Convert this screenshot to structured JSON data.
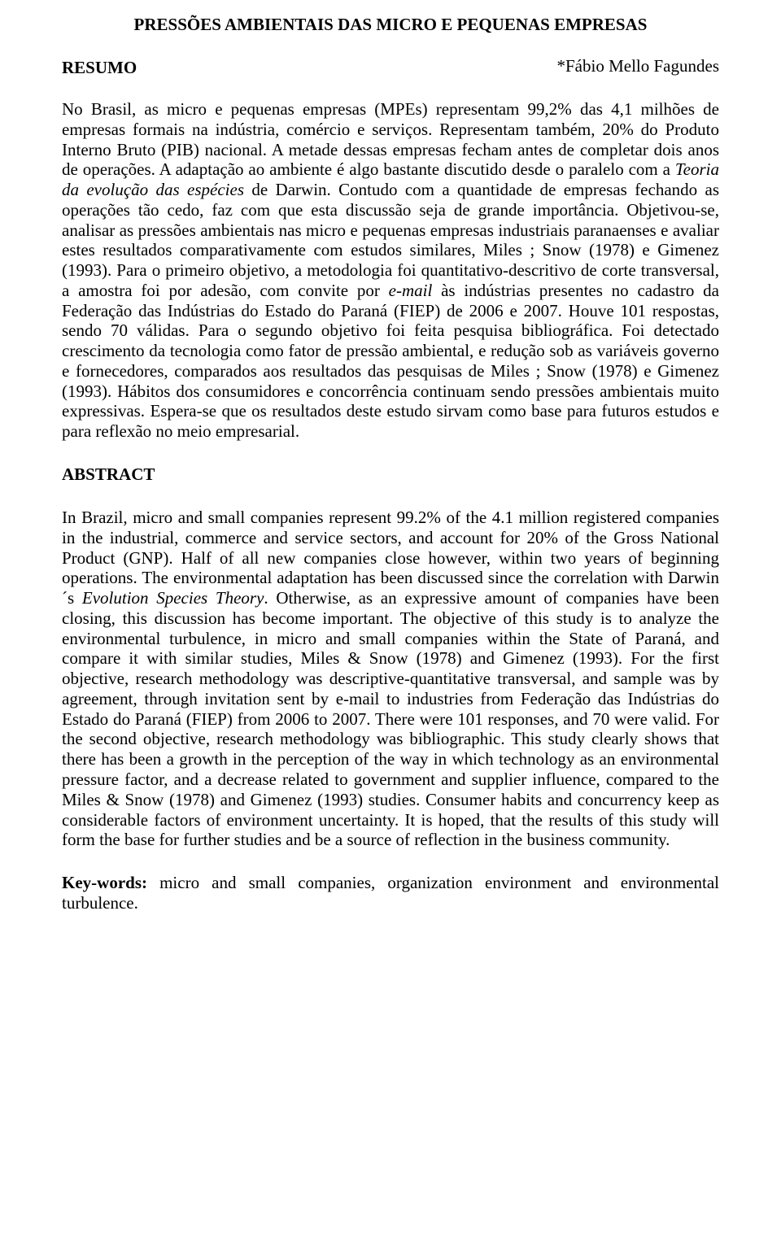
{
  "title": "PRESSÕES AMBIENTAIS DAS MICRO E PEQUENAS EMPRESAS",
  "resumo_heading": "RESUMO",
  "author": "*Fábio Mello Fagundes",
  "resumo_body_1": "No Brasil, as micro e pequenas empresas (MPEs) representam 99,2% das 4,1 milhões de empresas formais na indústria, comércio e serviços. Representam também, 20% do Produto Interno Bruto (PIB) nacional. A metade dessas empresas fecham antes de completar dois anos de operações. A adaptação ao ambiente é algo bastante discutido desde o paralelo com a ",
  "resumo_italic_1": "Teoria da evolução das espécies",
  "resumo_body_2": " de Darwin. Contudo com a quantidade de empresas fechando as operações tão cedo, faz com que esta discussão seja de grande importância. Objetivou-se, analisar as pressões ambientais nas micro e pequenas empresas industriais paranaenses e avaliar estes resultados comparativamente com estudos similares, Miles ; Snow (1978) e Gimenez (1993). Para o primeiro objetivo, a metodologia foi quantitativo-descritivo de corte transversal, a amostra foi por adesão, com convite por ",
  "resumo_italic_2": "e-mail",
  "resumo_body_3": " às indústrias presentes no cadastro da Federação das Indústrias do Estado do Paraná (FIEP) de 2006 e 2007. Houve 101 respostas, sendo 70 válidas. Para o segundo objetivo foi feita pesquisa bibliográfica. Foi detectado crescimento da tecnologia como fator de pressão ambiental, e redução sob as variáveis governo e fornecedores, comparados aos resultados das pesquisas de Miles ; Snow (1978) e Gimenez (1993). Hábitos dos consumidores e concorrência continuam sendo pressões ambientais muito expressivas. Espera-se que os resultados deste estudo sirvam como base para futuros estudos e para reflexão no meio empresarial.",
  "abstract_heading": "ABSTRACT",
  "abstract_body_1": "In Brazil, micro and small companies represent 99.2% of the 4.1 million registered companies in the industrial, commerce and service sectors, and account for 20% of the Gross National Product (GNP). Half of all new companies close however, within two years of beginning operations. The environmental adaptation has been discussed since the correlation with Darwin´s ",
  "abstract_italic_1": "Evolution Species Theory",
  "abstract_body_2": ". Otherwise, as an expressive amount of companies have been closing, this discussion has become important. The objective of this study is to analyze the environmental turbulence, in micro and small companies within the State of Paraná, and compare it with similar studies, Miles & Snow (1978) and Gimenez (1993). For the first objective, research methodology was descriptive-quantitative transversal, and sample was by agreement, through invitation sent by e-mail to industries from Federação das Indústrias do Estado do Paraná (FIEP) from 2006 to 2007. There were 101 responses, and 70 were valid. For the second objective, research methodology was bibliographic. This study clearly shows that there has been a growth in the perception of the way in which technology as an environmental pressure factor, and a decrease related to government and supplier influence, compared to the Miles & Snow (1978) and Gimenez (1993) studies. Consumer habits and concurrency keep as considerable factors of environment uncertainty. It is hoped, that the results of this study will form the base for further studies and be a source of reflection in the business community.",
  "keywords_label": "Key-words:",
  "keywords_text": " micro and small companies, organization environment and environmental turbulence."
}
